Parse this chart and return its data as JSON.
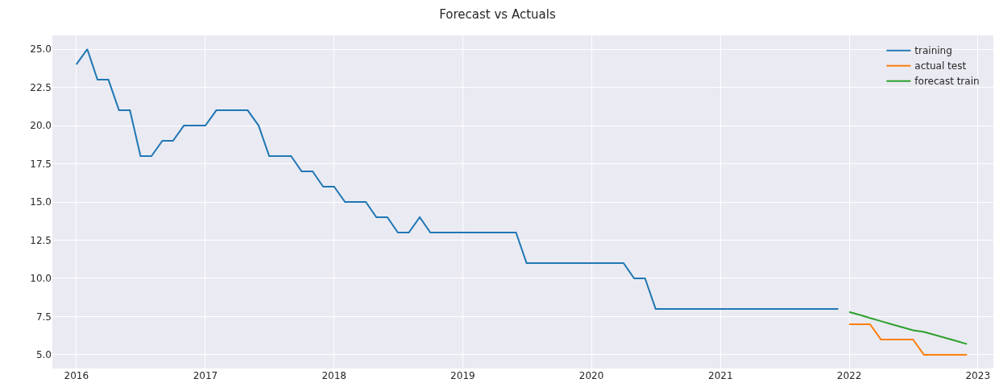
{
  "chart_data": {
    "type": "line",
    "title": "Forecast vs Actuals",
    "series": [
      {
        "name": "training",
        "color": "#1f77b4",
        "x": [
          "2016-01",
          "2016-02",
          "2016-03",
          "2016-04",
          "2016-05",
          "2016-06",
          "2016-07",
          "2016-08",
          "2016-09",
          "2016-10",
          "2016-11",
          "2016-12",
          "2017-01",
          "2017-02",
          "2017-03",
          "2017-04",
          "2017-05",
          "2017-06",
          "2017-07",
          "2017-08",
          "2017-09",
          "2017-10",
          "2017-11",
          "2017-12",
          "2018-01",
          "2018-02",
          "2018-03",
          "2018-04",
          "2018-05",
          "2018-06",
          "2018-07",
          "2018-08",
          "2018-09",
          "2018-10",
          "2018-11",
          "2018-12",
          "2019-01",
          "2019-02",
          "2019-03",
          "2019-04",
          "2019-05",
          "2019-06",
          "2019-07",
          "2019-08",
          "2019-09",
          "2019-10",
          "2019-11",
          "2019-12",
          "2020-01",
          "2020-02",
          "2020-03",
          "2020-04",
          "2020-05",
          "2020-06",
          "2020-07",
          "2020-08",
          "2020-09",
          "2020-10",
          "2020-11",
          "2020-12",
          "2021-01",
          "2021-02",
          "2021-03",
          "2021-04",
          "2021-05",
          "2021-06",
          "2021-07",
          "2021-08",
          "2021-09",
          "2021-10",
          "2021-11",
          "2021-12"
        ],
        "values": [
          24,
          25,
          23,
          23,
          21,
          21,
          18,
          18,
          19,
          19,
          20,
          20,
          20,
          21,
          21,
          21,
          21,
          20,
          18,
          18,
          18,
          17,
          17,
          16,
          16,
          15,
          15,
          15,
          14,
          14,
          13,
          13,
          14,
          13,
          13,
          13,
          13,
          13,
          13,
          13,
          13,
          13,
          11,
          11,
          11,
          11,
          11,
          11,
          11,
          11,
          11,
          11,
          10,
          10,
          8,
          8,
          8,
          8,
          8,
          8,
          8,
          8,
          8,
          8,
          8,
          8,
          8,
          8,
          8,
          8,
          8,
          8
        ]
      },
      {
        "name": "actual test",
        "color": "#ff7f0e",
        "x": [
          "2022-01",
          "2022-02",
          "2022-03",
          "2022-04",
          "2022-05",
          "2022-06",
          "2022-07",
          "2022-08",
          "2022-09",
          "2022-10",
          "2022-11",
          "2022-12"
        ],
        "values": [
          7,
          7,
          7,
          6,
          6,
          6,
          6,
          5,
          5,
          5,
          5,
          5
        ]
      },
      {
        "name": "forecast train",
        "color": "#2ca02c",
        "x": [
          "2022-01",
          "2022-02",
          "2022-03",
          "2022-04",
          "2022-05",
          "2022-06",
          "2022-07",
          "2022-08",
          "2022-09",
          "2022-10",
          "2022-11",
          "2022-12"
        ],
        "values": [
          7.8,
          7.6,
          7.4,
          7.2,
          7.0,
          6.8,
          6.6,
          6.5,
          6.3,
          6.1,
          5.9,
          5.7
        ]
      }
    ],
    "xlim": [
      "2015-10-25",
      "2023-02-14"
    ],
    "xticks": [
      {
        "value": "2016-01-01",
        "label": "2016"
      },
      {
        "value": "2017-01-01",
        "label": "2017"
      },
      {
        "value": "2018-01-01",
        "label": "2018"
      },
      {
        "value": "2019-01-01",
        "label": "2019"
      },
      {
        "value": "2020-01-01",
        "label": "2020"
      },
      {
        "value": "2021-01-01",
        "label": "2021"
      },
      {
        "value": "2022-01-01",
        "label": "2022"
      },
      {
        "value": "2023-01-01",
        "label": "2023"
      }
    ],
    "ylim": [
      4.1,
      25.9
    ],
    "yticks": [
      {
        "value": 5,
        "label": "5.0"
      },
      {
        "value": 7.5,
        "label": "7.5"
      },
      {
        "value": 10,
        "label": "10.0"
      },
      {
        "value": 12.5,
        "label": "12.5"
      },
      {
        "value": 15,
        "label": "15.0"
      },
      {
        "value": 17.5,
        "label": "17.5"
      },
      {
        "value": 20,
        "label": "20.0"
      },
      {
        "value": 22.5,
        "label": "22.5"
      },
      {
        "value": 25,
        "label": "25.0"
      }
    ],
    "grid": true,
    "legend": "top right",
    "marker": "none",
    "line_style": "solid"
  }
}
